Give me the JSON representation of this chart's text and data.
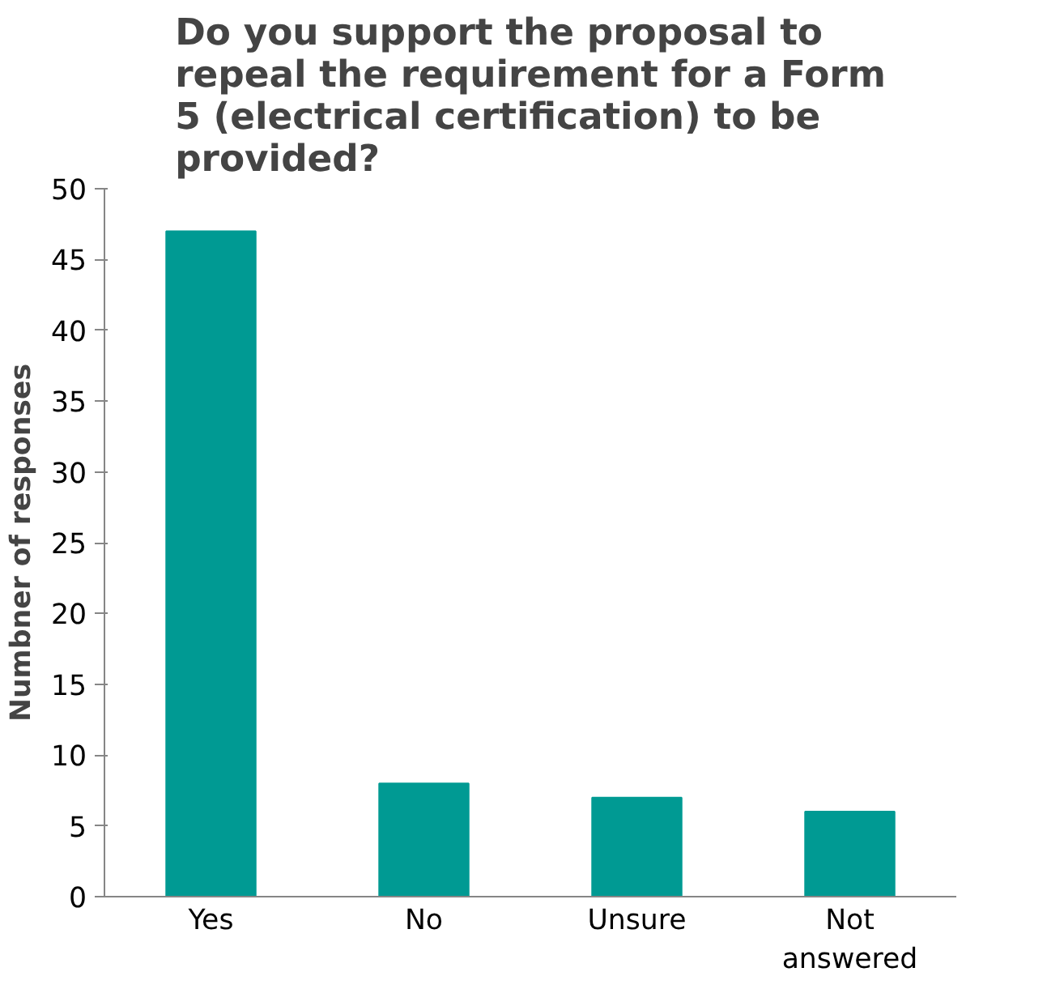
{
  "chart_data": {
    "type": "bar",
    "title": "Do you support the proposal to repeal the requirement for a Form 5 (electrical certification) to be provided?",
    "ylabel": "Numbner of responses",
    "categories": [
      "Yes",
      "No",
      "Unsure",
      "Not answered"
    ],
    "values": [
      47,
      8,
      7,
      6
    ],
    "color": "#009a93",
    "ylim": [
      0,
      50
    ],
    "yticks": [
      0,
      5,
      10,
      15,
      20,
      25,
      30,
      35,
      40,
      45,
      50
    ],
    "grid": false
  }
}
